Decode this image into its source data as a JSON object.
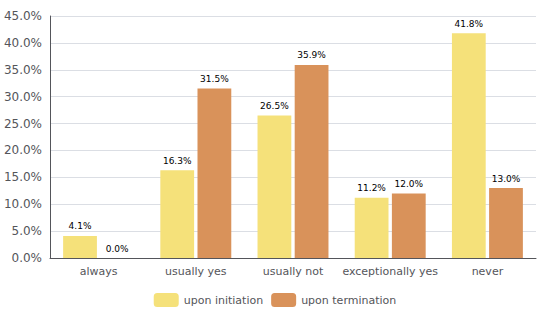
{
  "chart_data": {
    "type": "bar",
    "categories": [
      "always",
      "usually yes",
      "usually not",
      "exceptionally yes",
      "never"
    ],
    "series": [
      {
        "name": "upon initiation",
        "color": "#F5E17A",
        "values": [
          4.1,
          16.3,
          26.5,
          11.2,
          41.8
        ],
        "value_labels": [
          "4.1%",
          "16.3%",
          "26.5%",
          "11.2%",
          "41.8%"
        ]
      },
      {
        "name": "upon termination",
        "color": "#D9925A",
        "values": [
          0.0,
          31.5,
          35.9,
          12.0,
          13.0
        ],
        "value_labels": [
          "0.0%",
          "31.5%",
          "35.9%",
          "12.0%",
          "13.0%"
        ]
      }
    ],
    "ylim": [
      0,
      45
    ],
    "yticks": [
      {
        "value": 0,
        "label": "0.0%"
      },
      {
        "value": 5,
        "label": "5.0%"
      },
      {
        "value": 10,
        "label": "10.0%"
      },
      {
        "value": 15,
        "label": "15.0%"
      },
      {
        "value": 20,
        "label": "20.0%"
      },
      {
        "value": 25,
        "label": "25.0%"
      },
      {
        "value": 30,
        "label": "30.0%"
      },
      {
        "value": 35,
        "label": "35.0%"
      },
      {
        "value": 40,
        "label": "40.0%"
      },
      {
        "value": 45,
        "label": "45.0%"
      }
    ],
    "grid": true,
    "legend": "bottom",
    "data_labels": true
  }
}
